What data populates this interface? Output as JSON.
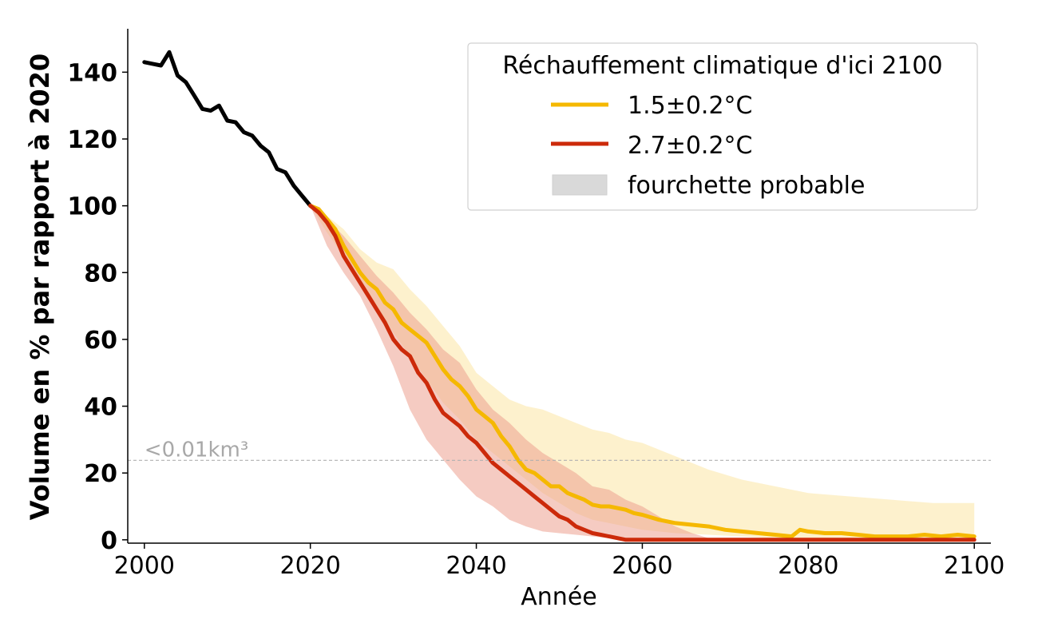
{
  "chart_data": {
    "type": "line",
    "xlabel": "Année",
    "ylabel": "Volume en % par rapport à 2020",
    "xlim": [
      1998,
      2102
    ],
    "ylim": [
      -1,
      153
    ],
    "xticks": [
      2000,
      2020,
      2040,
      2060,
      2080,
      2100
    ],
    "yticks": [
      0,
      20,
      40,
      60,
      80,
      100,
      120,
      140
    ],
    "grid": false,
    "legend": {
      "title": "Réchauffement climatique d'ici 2100",
      "placement": "top-right",
      "entries": [
        "1.5±0.2°C",
        "2.7±0.2°C",
        "fourchette probable"
      ]
    },
    "annotation": {
      "text": "<0.01km³",
      "y": 23.8
    },
    "colors": {
      "historical": "#000000",
      "low": "#f5b800",
      "high": "#cc2a0a",
      "low_band": "#fdeec4",
      "high_band": "#eda08f",
      "legend_band": "#d9d9d9",
      "threshold": "#b0b0b0"
    },
    "historical": {
      "x": [
        2000,
        2001,
        2002,
        2003,
        2004,
        2005,
        2006,
        2007,
        2008,
        2009,
        2010,
        2011,
        2012,
        2013,
        2014,
        2015,
        2016,
        2017,
        2018,
        2019,
        2020
      ],
      "y": [
        143,
        142.5,
        142,
        146,
        139,
        137,
        133,
        129,
        128.5,
        130,
        125.5,
        125,
        122,
        121,
        118,
        116,
        111,
        110,
        106,
        103,
        100
      ]
    },
    "series": [
      {
        "name": "1.5±0.2°C",
        "x": [
          2020,
          2021,
          2022,
          2023,
          2024,
          2025,
          2026,
          2027,
          2028,
          2029,
          2030,
          2031,
          2032,
          2033,
          2034,
          2035,
          2036,
          2037,
          2038,
          2039,
          2040,
          2041,
          2042,
          2043,
          2044,
          2045,
          2046,
          2047,
          2048,
          2049,
          2050,
          2051,
          2052,
          2053,
          2054,
          2055,
          2056,
          2057,
          2058,
          2059,
          2060,
          2062,
          2064,
          2066,
          2068,
          2070,
          2072,
          2074,
          2076,
          2078,
          2079,
          2080,
          2082,
          2084,
          2086,
          2088,
          2090,
          2092,
          2094,
          2096,
          2098,
          2100
        ],
        "y": [
          100,
          99,
          96,
          93,
          88,
          84,
          80,
          77,
          75,
          71,
          69,
          65,
          63,
          61,
          59,
          55,
          51,
          48,
          46,
          43,
          39,
          37,
          35,
          31,
          28,
          24,
          21,
          20,
          18,
          16,
          16,
          14,
          13,
          12,
          10.5,
          10,
          10,
          9.5,
          9,
          8,
          7.5,
          6,
          5,
          4.5,
          4,
          3,
          2.5,
          2,
          1.5,
          1,
          3,
          2.5,
          2,
          2,
          1.5,
          1,
          1,
          1,
          1.5,
          1,
          1.5,
          1
        ]
      },
      {
        "name": "2.7±0.2°C",
        "x": [
          2020,
          2021,
          2022,
          2023,
          2024,
          2025,
          2026,
          2027,
          2028,
          2029,
          2030,
          2031,
          2032,
          2033,
          2034,
          2035,
          2036,
          2037,
          2038,
          2039,
          2040,
          2041,
          2042,
          2043,
          2044,
          2045,
          2046,
          2047,
          2048,
          2049,
          2050,
          2051,
          2052,
          2053,
          2054,
          2055,
          2056,
          2057,
          2058,
          2060,
          2070,
          2080,
          2090,
          2100
        ],
        "y": [
          100,
          98,
          95,
          91,
          85,
          81,
          77,
          73,
          69,
          65,
          60,
          57,
          55,
          50,
          47,
          42,
          38,
          36,
          34,
          31,
          29,
          26,
          23,
          21,
          19,
          17,
          15,
          13,
          11,
          9,
          7,
          6,
          4,
          3,
          2,
          1.5,
          1,
          0.5,
          0,
          0,
          0,
          0,
          0,
          0
        ]
      }
    ],
    "bands": [
      {
        "x": [
          2020,
          2022,
          2024,
          2026,
          2028,
          2030,
          2032,
          2034,
          2036,
          2038,
          2040,
          2042,
          2044,
          2046,
          2048,
          2050,
          2052,
          2054,
          2056,
          2058,
          2060,
          2064,
          2068,
          2072,
          2076,
          2080,
          2085,
          2090,
          2095,
          2100
        ],
        "upper": [
          100,
          97,
          93,
          87,
          83,
          81,
          75,
          70,
          64,
          58,
          50,
          46,
          42,
          40,
          39,
          37,
          35,
          33,
          32,
          30,
          29,
          25,
          21,
          18,
          16,
          14,
          13,
          12,
          11,
          11
        ],
        "lower": [
          100,
          92,
          85,
          78,
          70,
          62,
          55,
          48,
          41,
          36,
          30,
          26,
          22,
          18,
          14,
          11,
          8,
          6,
          5,
          4,
          3,
          2,
          1.5,
          1,
          0.5,
          0.3,
          0.2,
          0.1,
          0.1,
          0.1
        ]
      },
      {
        "x": [
          2020,
          2022,
          2024,
          2026,
          2028,
          2030,
          2032,
          2034,
          2036,
          2038,
          2040,
          2042,
          2044,
          2046,
          2048,
          2050,
          2052,
          2054,
          2056,
          2058,
          2060,
          2062,
          2064,
          2066,
          2068
        ],
        "upper": [
          100,
          96,
          91,
          85,
          79,
          74,
          68,
          63,
          57,
          53,
          45,
          39,
          35,
          30,
          26,
          23,
          20,
          16,
          15,
          12,
          10,
          7,
          4,
          2,
          0.5
        ],
        "lower": [
          100,
          88,
          80,
          73,
          63,
          52,
          39,
          30,
          24,
          18,
          13,
          10,
          6,
          4,
          2.5,
          2,
          1.5,
          1,
          0.5,
          0,
          0,
          0,
          0,
          0,
          0
        ]
      }
    ]
  }
}
